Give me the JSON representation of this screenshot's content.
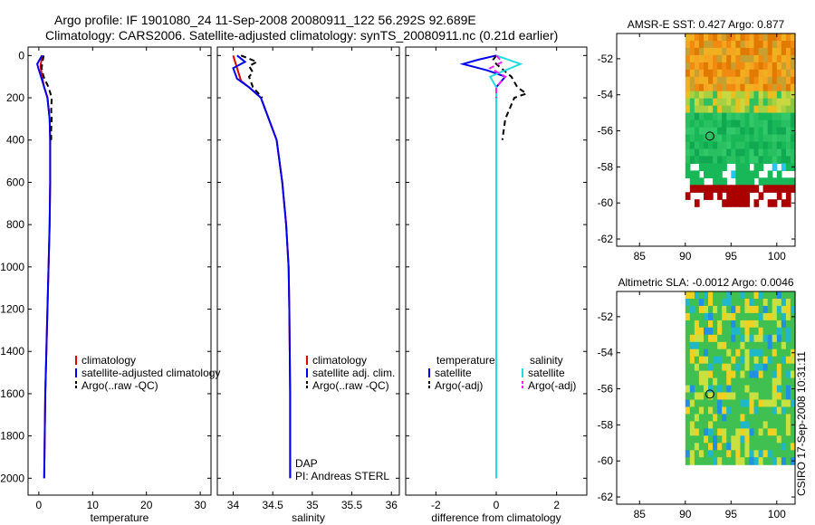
{
  "figure": {
    "title_line1": "Argo profile: IF 1901080_24 11-Sep-2008 20080911_122 56.292S 92.689E",
    "title_line2": "Climatology: CARS2006. Satellite-adjusted climatology: synTS_20080911.nc (0.21d earlier)",
    "side_stamp": "CSIRO 17-Sep-2008 10:31:11"
  },
  "colors": {
    "climatology": "#dd0000",
    "satellite": "#0000ee",
    "argo": "#000000",
    "salinity_satellite": "#22dddd",
    "salinity_argo": "#ee22ee"
  },
  "chart_data": [
    {
      "id": "temperature",
      "type": "line",
      "xlabel": "temperature",
      "xlim": [
        -2,
        32
      ],
      "xticks": [
        0,
        10,
        20,
        30
      ],
      "ylim": [
        2080,
        -40
      ],
      "yticks": [
        0,
        200,
        400,
        600,
        800,
        1000,
        1200,
        1400,
        1600,
        1800,
        2000
      ],
      "legend": [
        "climatology",
        "satellite-adjusted climatology",
        "Argo(..raw -QC)"
      ],
      "series": [
        {
          "name": "climatology",
          "color": "#dd0000",
          "dash": "solid",
          "points": [
            [
              0.8,
              0
            ],
            [
              0.5,
              20
            ],
            [
              0.3,
              50
            ],
            [
              0.6,
              100
            ],
            [
              1.0,
              150
            ],
            [
              1.6,
              200
            ],
            [
              2.0,
              300
            ],
            [
              2.1,
              400
            ],
            [
              2.1,
              600
            ],
            [
              2.0,
              800
            ],
            [
              1.8,
              1000
            ],
            [
              1.6,
              1200
            ],
            [
              1.4,
              1400
            ],
            [
              1.2,
              1600
            ],
            [
              1.1,
              1800
            ],
            [
              1.0,
              2000
            ]
          ]
        },
        {
          "name": "satellite-adjusted climatology",
          "color": "#0000ee",
          "dash": "solid",
          "points": [
            [
              0.6,
              0
            ],
            [
              -0.3,
              40
            ],
            [
              -0.1,
              60
            ],
            [
              0.4,
              100
            ],
            [
              1.0,
              150
            ],
            [
              1.6,
              200
            ],
            [
              2.0,
              300
            ],
            [
              2.1,
              400
            ],
            [
              2.1,
              600
            ],
            [
              2.0,
              800
            ],
            [
              1.8,
              1000
            ],
            [
              1.6,
              1200
            ],
            [
              1.4,
              1400
            ],
            [
              1.2,
              1600
            ],
            [
              1.1,
              1800
            ],
            [
              1.0,
              2000
            ]
          ]
        },
        {
          "name": "Argo(..raw -QC)",
          "color": "#000000",
          "dash": "dashed",
          "points": [
            [
              0.9,
              0
            ],
            [
              0.7,
              30
            ],
            [
              0.5,
              60
            ],
            [
              0.9,
              100
            ],
            [
              1.8,
              150
            ],
            [
              2.4,
              200
            ],
            [
              2.3,
              260
            ],
            [
              2.4,
              300
            ],
            [
              2.3,
              350
            ],
            [
              2.3,
              400
            ]
          ]
        }
      ]
    },
    {
      "id": "salinity",
      "type": "line",
      "xlabel": "salinity",
      "xlim": [
        33.8,
        36.1
      ],
      "xticks": [
        34,
        34.5,
        35,
        35.5,
        36
      ],
      "ylim": [
        2080,
        -40
      ],
      "yticks": [
        0,
        200,
        400,
        600,
        800,
        1000,
        1200,
        1400,
        1600,
        1800,
        2000
      ],
      "legend": [
        "climatology",
        "satellite adj. clim.",
        "Argo(..raw -QC)"
      ],
      "annotations": [
        "DAP",
        "PI: Andreas STERL"
      ],
      "series": [
        {
          "name": "climatology",
          "color": "#dd0000",
          "dash": "solid",
          "points": [
            [
              34.0,
              0
            ],
            [
              34.05,
              60
            ],
            [
              34.1,
              120
            ],
            [
              34.2,
              150
            ],
            [
              34.35,
              200
            ],
            [
              34.45,
              300
            ],
            [
              34.55,
              400
            ],
            [
              34.62,
              600
            ],
            [
              34.67,
              800
            ],
            [
              34.7,
              1000
            ],
            [
              34.71,
              1200
            ],
            [
              34.72,
              1600
            ],
            [
              34.72,
              2000
            ]
          ]
        },
        {
          "name": "satellite adj. clim.",
          "color": "#0000ee",
          "dash": "solid",
          "points": [
            [
              34.05,
              0
            ],
            [
              34.15,
              30
            ],
            [
              34.0,
              60
            ],
            [
              34.05,
              110
            ],
            [
              34.2,
              150
            ],
            [
              34.35,
              200
            ],
            [
              34.45,
              300
            ],
            [
              34.55,
              400
            ],
            [
              34.62,
              600
            ],
            [
              34.67,
              800
            ],
            [
              34.7,
              1000
            ],
            [
              34.71,
              1200
            ],
            [
              34.72,
              1600
            ],
            [
              34.72,
              2000
            ]
          ]
        },
        {
          "name": "Argo(..raw -QC)",
          "color": "#000000",
          "dash": "dashed",
          "points": [
            [
              34.1,
              0
            ],
            [
              34.3,
              30
            ],
            [
              34.2,
              50
            ],
            [
              34.25,
              80
            ],
            [
              34.2,
              100
            ],
            [
              34.25,
              150
            ],
            [
              34.37,
              200
            ]
          ]
        }
      ]
    },
    {
      "id": "difference",
      "type": "line",
      "xlabel": "difference from climatology",
      "xlim": [
        -3,
        3
      ],
      "xticks": [
        -2,
        0,
        2
      ],
      "ylim": [
        2080,
        -40
      ],
      "yticks": [
        0,
        200,
        400,
        600,
        800,
        1000,
        1200,
        1400,
        1600,
        1800,
        2000
      ],
      "legend_groups": [
        {
          "heading": "temperature",
          "items": [
            "satellite",
            "Argo(-adj)"
          ]
        },
        {
          "heading": "salinity",
          "items": [
            "satellite",
            "Argo(-adj)"
          ]
        }
      ],
      "series": [
        {
          "name": "temperature satellite",
          "color": "#0000ee",
          "dash": "solid",
          "points": [
            [
              0,
              0
            ],
            [
              -0.6,
              20
            ],
            [
              -1.1,
              40
            ],
            [
              -0.3,
              70
            ],
            [
              0.3,
              100
            ],
            [
              0,
              150
            ],
            [
              0,
              200
            ],
            [
              0,
              300
            ],
            [
              0,
              600
            ],
            [
              0,
              1000
            ],
            [
              0,
              2000
            ]
          ]
        },
        {
          "name": "temperature Argo(-adj)",
          "color": "#000000",
          "dash": "dashed",
          "points": [
            [
              0,
              0
            ],
            [
              -0.1,
              20
            ],
            [
              0,
              40
            ],
            [
              0.5,
              100
            ],
            [
              0.7,
              150
            ],
            [
              1.0,
              180
            ],
            [
              0.6,
              200
            ],
            [
              0.3,
              300
            ],
            [
              0.2,
              400
            ]
          ]
        },
        {
          "name": "salinity satellite",
          "color": "#22dddd",
          "dash": "solid",
          "points": [
            [
              0,
              0
            ],
            [
              0.3,
              15
            ],
            [
              0.8,
              40
            ],
            [
              0.3,
              70
            ],
            [
              -0.2,
              100
            ],
            [
              0,
              150
            ],
            [
              0,
              200
            ],
            [
              0,
              400
            ],
            [
              0,
              800
            ],
            [
              0,
              1200
            ],
            [
              0,
              2000
            ]
          ]
        },
        {
          "name": "salinity Argo(-adj)",
          "color": "#ee22ee",
          "dash": "dashed",
          "points": [
            [
              0,
              0
            ],
            [
              0.2,
              30
            ],
            [
              -0.2,
              60
            ],
            [
              0.3,
              100
            ],
            [
              0,
              150
            ],
            [
              0,
              200
            ]
          ]
        }
      ]
    },
    {
      "id": "sst_map",
      "type": "heatmap",
      "title": "AMSR-E SST: 0.427 Argo: 0.877",
      "xlim": [
        82.5,
        102
      ],
      "ylim": [
        -62.4,
        -50.6
      ],
      "xticks": [
        85,
        90,
        95,
        100
      ],
      "yticks": [
        -52,
        -54,
        -56,
        -58,
        -60,
        -62
      ],
      "data_extent": {
        "lon": [
          90,
          102
        ],
        "lat": [
          -60.2,
          -50.6
        ]
      },
      "marker": {
        "lon": 92.689,
        "lat": -56.292
      }
    },
    {
      "id": "sla_map",
      "type": "heatmap",
      "title": "Altimetric SLA: -0.0012 Argo: 0.0046",
      "xlim": [
        82.5,
        102
      ],
      "ylim": [
        -62.4,
        -50.6
      ],
      "xticks": [
        85,
        90,
        95,
        100
      ],
      "yticks": [
        -52,
        -54,
        -56,
        -58,
        -60,
        -62
      ],
      "data_extent": {
        "lon": [
          90,
          102
        ],
        "lat": [
          -60.2,
          -50.6
        ]
      },
      "marker": {
        "lon": 92.689,
        "lat": -56.292
      }
    }
  ]
}
